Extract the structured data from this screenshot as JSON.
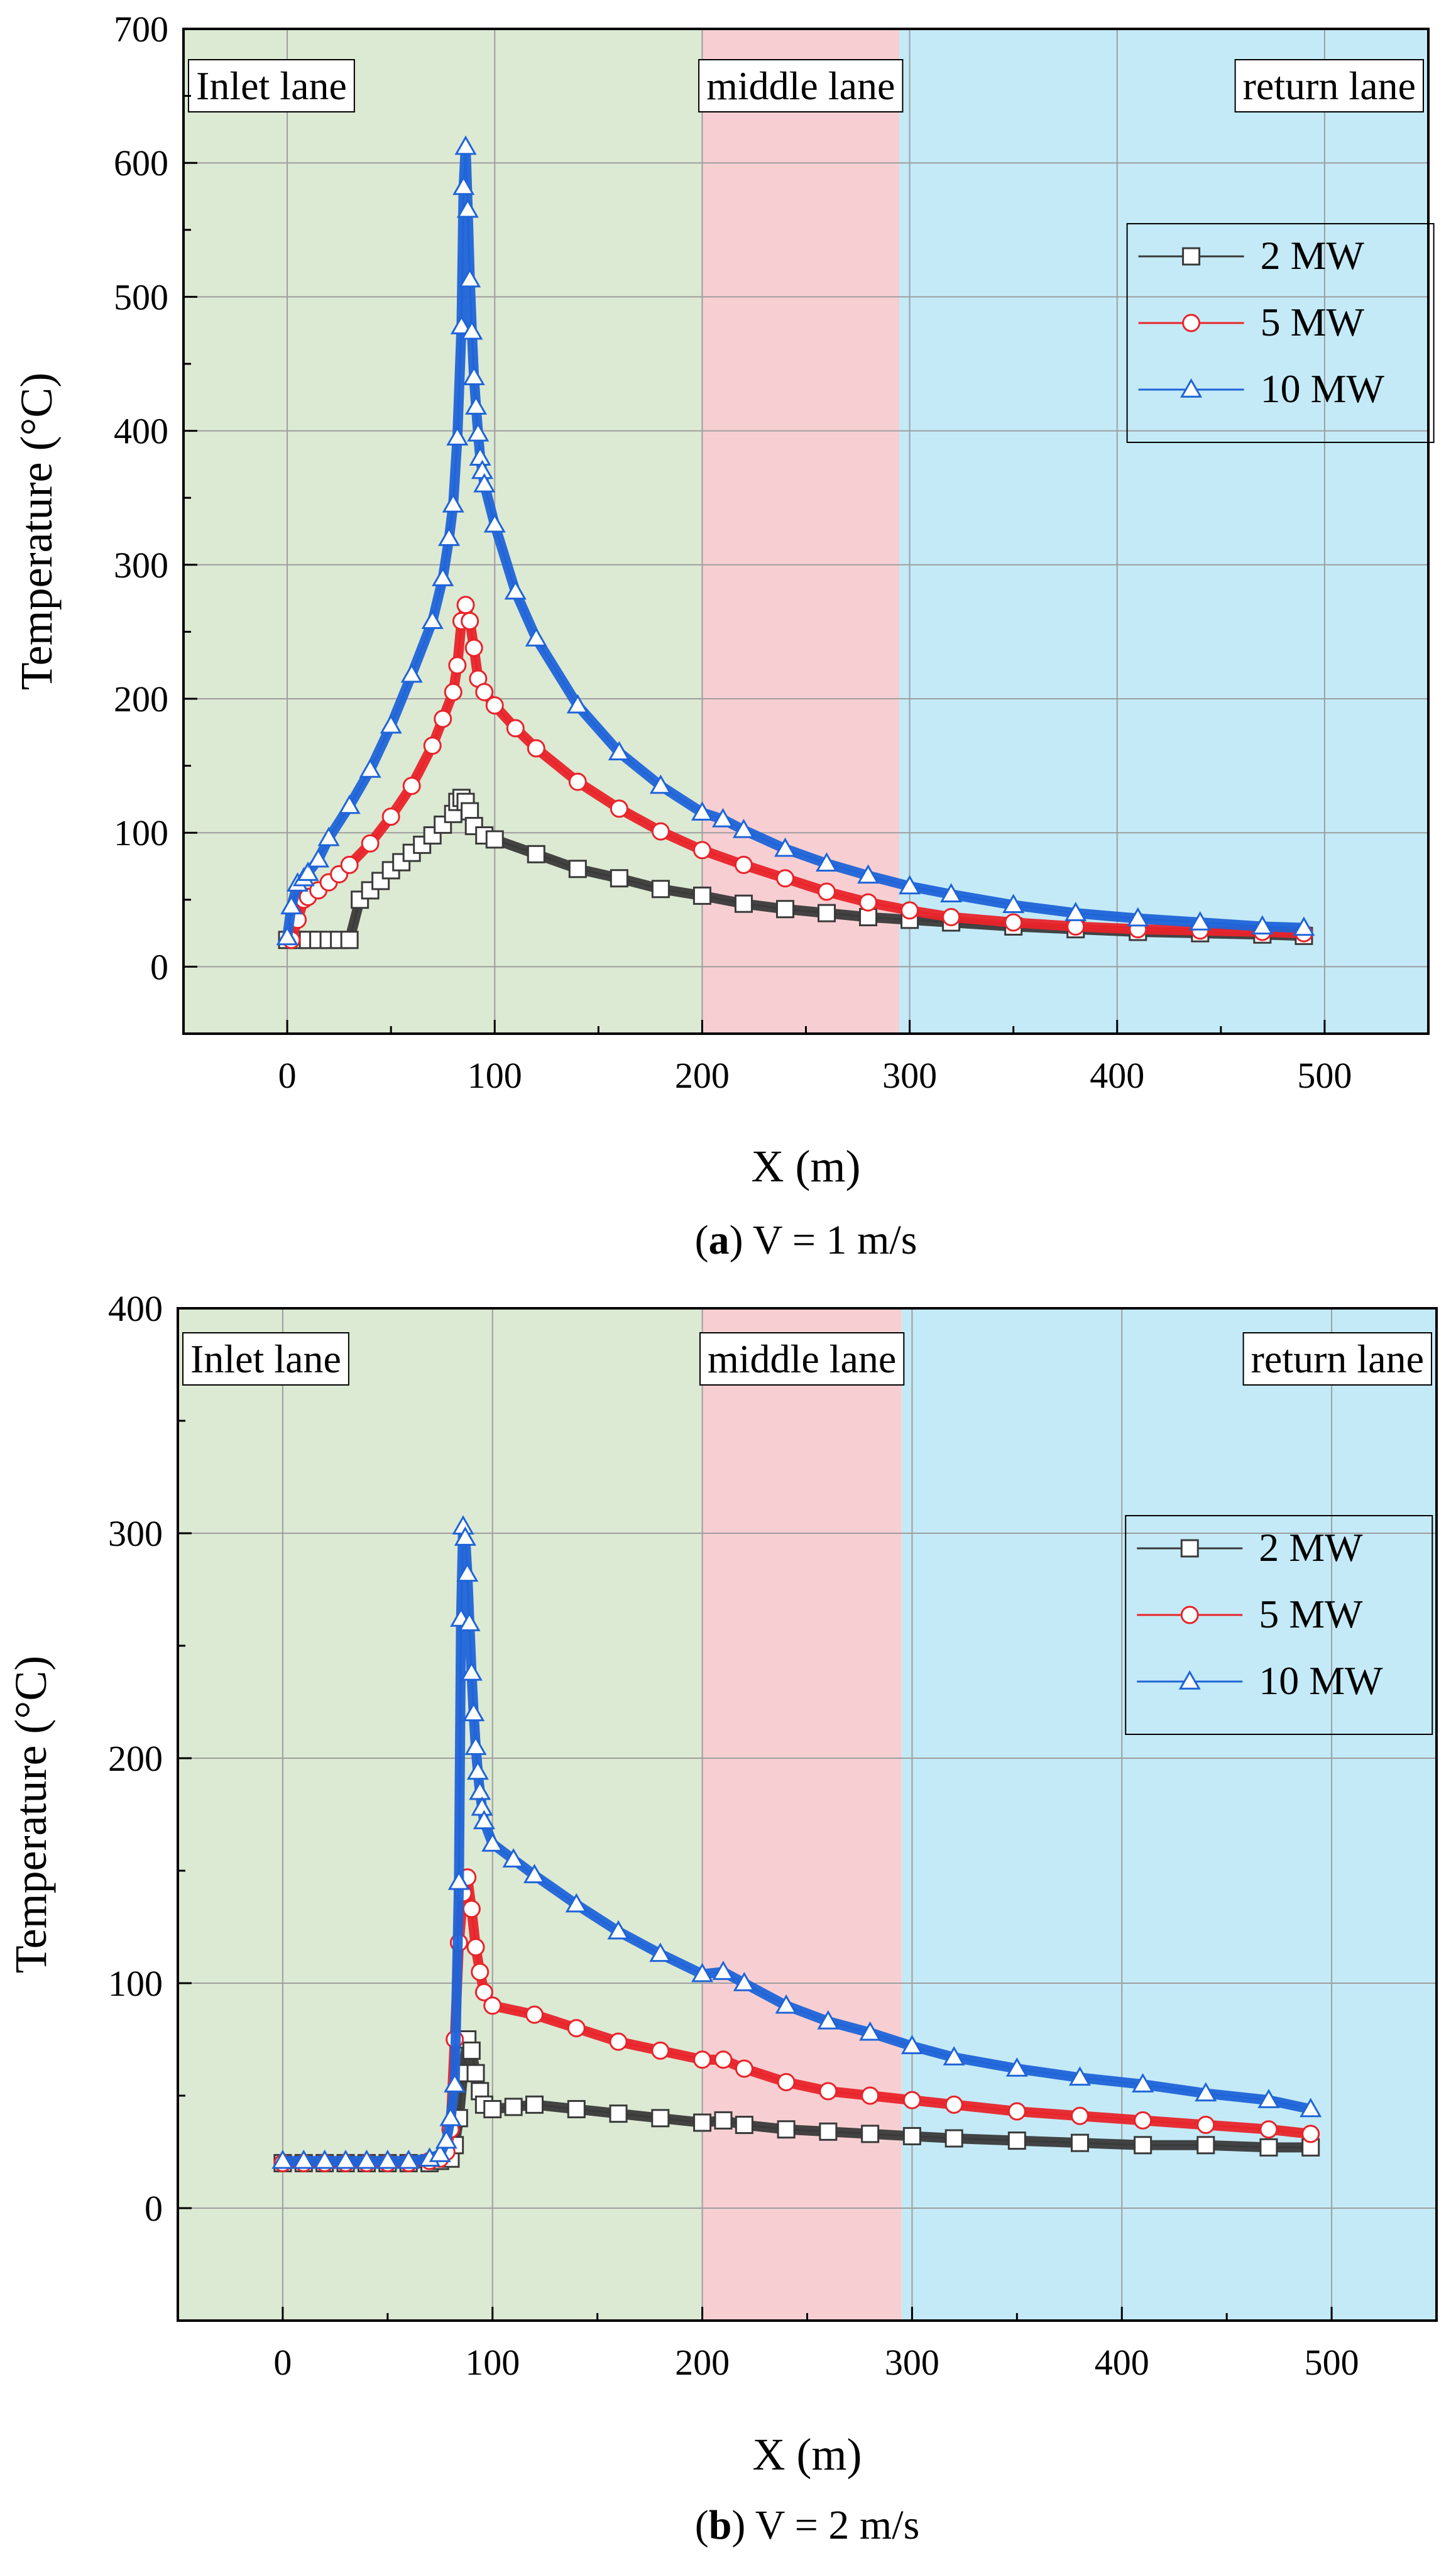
{
  "chart_data": [
    {
      "type": "line",
      "panel_letter": "a",
      "caption_rest": " V = 1 m/s",
      "xlabel": "X (m)",
      "ylabel": "Temperature (°C)",
      "xlim": [
        -50,
        550
      ],
      "ylim": [
        -50,
        700
      ],
      "xticks": [
        0,
        100,
        200,
        300,
        400,
        500
      ],
      "yticks": [
        0,
        100,
        200,
        300,
        400,
        500,
        600,
        700
      ],
      "grid": true,
      "legend_position": "upper-right",
      "regions": [
        {
          "label": "Inlet lane",
          "x0": -50,
          "x1": 200,
          "color": "#dce9d3"
        },
        {
          "label": "middle lane",
          "x0": 200,
          "x1": 295,
          "color": "#f7cfd2"
        },
        {
          "label": "return lane",
          "x0": 295,
          "x1": 550,
          "color": "#c4eaf7"
        }
      ],
      "series": [
        {
          "name": "2 MW",
          "color": "#3a3a3a",
          "marker": "square",
          "x": [
            0,
            5,
            10,
            15,
            20,
            25,
            30,
            35,
            40,
            45,
            50,
            55,
            60,
            65,
            70,
            75,
            80,
            82,
            84,
            86,
            88,
            90,
            95,
            100,
            120,
            140,
            160,
            180,
            200,
            220,
            240,
            260,
            280,
            300,
            320,
            350,
            380,
            410,
            440,
            470,
            490
          ],
          "y": [
            20,
            20,
            20,
            20,
            20,
            20,
            20,
            50,
            57,
            64,
            72,
            78,
            85,
            91,
            98,
            106,
            114,
            123,
            126,
            123,
            116,
            105,
            98,
            95,
            84,
            73,
            66,
            58,
            53,
            47,
            43,
            40,
            37,
            35,
            33,
            30,
            28,
            26,
            25,
            24,
            23
          ]
        },
        {
          "name": "5 MW",
          "color": "#e8242a",
          "marker": "circle",
          "x": [
            2,
            5,
            8,
            10,
            15,
            20,
            25,
            30,
            40,
            50,
            60,
            70,
            75,
            80,
            82,
            84,
            86,
            88,
            90,
            92,
            95,
            100,
            110,
            120,
            140,
            160,
            180,
            200,
            220,
            240,
            260,
            280,
            300,
            320,
            350,
            380,
            410,
            440,
            470,
            490
          ],
          "y": [
            20,
            35,
            50,
            52,
            57,
            63,
            69,
            76,
            92,
            112,
            135,
            165,
            185,
            205,
            225,
            258,
            270,
            258,
            238,
            215,
            205,
            195,
            178,
            163,
            138,
            118,
            101,
            87,
            76,
            66,
            56,
            48,
            42,
            37,
            33,
            30,
            28,
            27,
            26,
            25
          ]
        },
        {
          "name": "10 MW",
          "color": "#1f64d8",
          "marker": "triangle",
          "x": [
            0,
            2,
            5,
            8,
            10,
            15,
            20,
            30,
            40,
            50,
            60,
            70,
            75,
            78,
            80,
            82,
            84,
            85,
            86,
            87,
            88,
            89,
            90,
            91,
            92,
            93,
            94,
            95,
            100,
            110,
            120,
            140,
            160,
            180,
            200,
            210,
            220,
            240,
            260,
            280,
            300,
            320,
            350,
            380,
            410,
            440,
            470,
            490
          ],
          "y": [
            22,
            45,
            62,
            66,
            70,
            80,
            96,
            120,
            147,
            180,
            218,
            258,
            290,
            320,
            345,
            395,
            478,
            582,
            612,
            565,
            513,
            474,
            440,
            418,
            398,
            380,
            370,
            360,
            330,
            280,
            245,
            195,
            160,
            135,
            115,
            110,
            102,
            88,
            77,
            68,
            60,
            54,
            46,
            40,
            36,
            33,
            30,
            29
          ]
        }
      ],
      "annotations": [
        "Inlet lane",
        "middle lane",
        "return lane"
      ]
    },
    {
      "type": "line",
      "panel_letter": "b",
      "caption_rest": " V = 2 m/s",
      "xlabel": "X (m)",
      "ylabel": "Temperature (°C)",
      "xlim": [
        -50,
        550
      ],
      "ylim": [
        -50,
        400
      ],
      "xticks": [
        0,
        100,
        200,
        300,
        400,
        500
      ],
      "yticks": [
        0,
        100,
        200,
        300,
        400
      ],
      "grid": true,
      "legend_position": "upper-right",
      "regions": [
        {
          "label": "Inlet lane",
          "x0": -50,
          "x1": 200,
          "color": "#dce9d3"
        },
        {
          "label": "middle lane",
          "x0": 200,
          "x1": 295,
          "color": "#f7cfd2"
        },
        {
          "label": "return lane",
          "x0": 295,
          "x1": 550,
          "color": "#c4eaf7"
        }
      ],
      "series": [
        {
          "name": "2 MW",
          "color": "#3a3a3a",
          "marker": "square",
          "x": [
            0,
            10,
            20,
            30,
            40,
            50,
            60,
            70,
            75,
            80,
            82,
            84,
            86,
            88,
            90,
            92,
            94,
            96,
            100,
            110,
            120,
            140,
            160,
            180,
            200,
            210,
            220,
            240,
            260,
            280,
            300,
            320,
            350,
            380,
            410,
            440,
            470,
            490
          ],
          "y": [
            20,
            20,
            20,
            20,
            20,
            20,
            20,
            20,
            21,
            22,
            28,
            40,
            60,
            75,
            70,
            60,
            52,
            46,
            44,
            45,
            46,
            44,
            42,
            40,
            38,
            39,
            37,
            35,
            34,
            33,
            32,
            31,
            30,
            29,
            28,
            28,
            27,
            27
          ]
        },
        {
          "name": "5 MW",
          "color": "#e8242a",
          "marker": "circle",
          "x": [
            0,
            10,
            20,
            30,
            40,
            50,
            60,
            70,
            75,
            78,
            80,
            82,
            84,
            86,
            88,
            90,
            92,
            94,
            96,
            100,
            120,
            140,
            160,
            180,
            200,
            210,
            220,
            240,
            260,
            280,
            300,
            320,
            350,
            380,
            410,
            440,
            470,
            490
          ],
          "y": [
            20,
            20,
            20,
            20,
            20,
            20,
            20,
            21,
            22,
            25,
            35,
            75,
            118,
            140,
            147,
            133,
            116,
            105,
            96,
            90,
            86,
            80,
            74,
            70,
            66,
            66,
            62,
            56,
            52,
            50,
            48,
            46,
            43,
            41,
            39,
            37,
            35,
            33
          ]
        },
        {
          "name": "10 MW",
          "color": "#1f64d8",
          "marker": "triangle",
          "x": [
            0,
            10,
            20,
            30,
            40,
            50,
            60,
            70,
            75,
            78,
            80,
            82,
            84,
            85,
            86,
            87,
            88,
            89,
            90,
            91,
            92,
            93,
            94,
            95,
            96,
            100,
            110,
            120,
            140,
            160,
            180,
            200,
            210,
            220,
            240,
            260,
            280,
            300,
            320,
            350,
            380,
            410,
            440,
            470,
            490
          ],
          "y": [
            21,
            21,
            21,
            21,
            21,
            21,
            21,
            22,
            24,
            30,
            40,
            55,
            145,
            262,
            303,
            298,
            282,
            260,
            238,
            220,
            205,
            194,
            185,
            178,
            172,
            162,
            155,
            148,
            135,
            123,
            113,
            104,
            105,
            100,
            90,
            83,
            78,
            72,
            67,
            62,
            58,
            55,
            51,
            48,
            44
          ]
        }
      ],
      "annotations": [
        "Inlet lane",
        "middle lane",
        "return lane"
      ]
    }
  ]
}
